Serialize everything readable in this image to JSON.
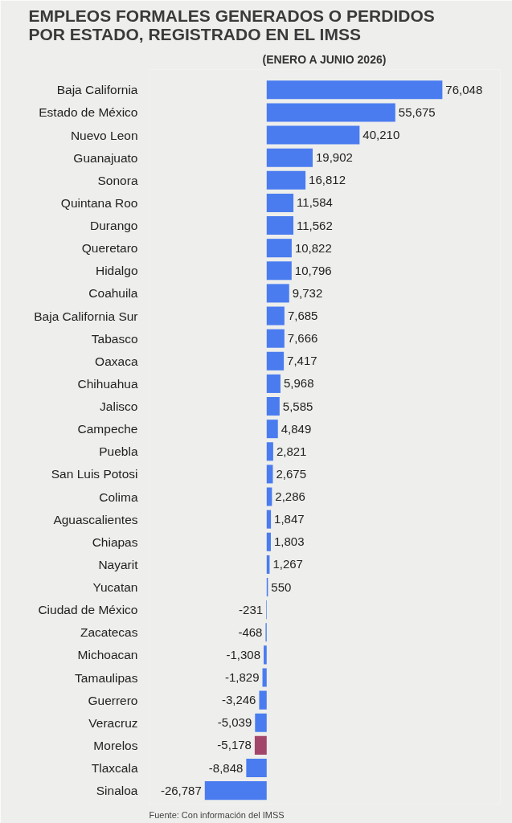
{
  "chart_data": {
    "type": "bar",
    "orientation": "horizontal",
    "title": "EMPLEOS FORMALES GENERADOS O PERDIDOS\nPOR ESTADO,  REGISTRADO EN EL IMSS",
    "subtitle": "(ENERO A JUNIO 2026)",
    "categories": [
      "Baja California",
      "Estado de México",
      "Nuevo Leon",
      "Guanajuato",
      "Sonora",
      "Quintana Roo",
      "Durango",
      "Queretaro",
      "Hidalgo",
      "Coahuila",
      "Baja California Sur",
      "Tabasco",
      "Oaxaca",
      "Chihuahua",
      "Jalisco",
      "Campeche",
      "Puebla",
      "San Luis Potosi",
      "Colima",
      "Aguascalientes",
      "Chiapas",
      "Nayarit",
      "Yucatan",
      "Ciudad de México",
      "Zacatecas",
      "Michoacan",
      "Tamaulipas",
      "Guerrero",
      "Veracruz",
      "Morelos",
      "Tlaxcala",
      "Sinaloa"
    ],
    "values": [
      76048,
      55675,
      40210,
      19902,
      16812,
      11584,
      11562,
      10822,
      10796,
      9732,
      7685,
      7666,
      7417,
      5968,
      5585,
      4849,
      2821,
      2675,
      2286,
      1847,
      1803,
      1267,
      550,
      -231,
      -468,
      -1308,
      -1829,
      -3246,
      -5039,
      -5178,
      -8848,
      -26787
    ],
    "colors": [
      "#4a7cf0",
      "#4a7cf0",
      "#4a7cf0",
      "#4a7cf0",
      "#4a7cf0",
      "#4a7cf0",
      "#4a7cf0",
      "#4a7cf0",
      "#4a7cf0",
      "#4a7cf0",
      "#4a7cf0",
      "#4a7cf0",
      "#4a7cf0",
      "#4a7cf0",
      "#4a7cf0",
      "#4a7cf0",
      "#4a7cf0",
      "#4a7cf0",
      "#4a7cf0",
      "#4a7cf0",
      "#4a7cf0",
      "#4a7cf0",
      "#4a7cf0",
      "#4a7cf0",
      "#4a7cf0",
      "#4a7cf0",
      "#4a7cf0",
      "#4a7cf0",
      "#4a7cf0",
      "#a3446a",
      "#4a7cf0",
      "#4a7cf0"
    ],
    "value_labels": [
      "76,048",
      "55,675",
      "40,210",
      "19,902",
      "16,812",
      "11,584",
      "11,562",
      "10,822",
      "10,796",
      "9,732",
      "7,685",
      "7,666",
      "7,417",
      "5,968",
      "5,585",
      "4,849",
      "2,821",
      "2,675",
      "2,286",
      "1,847",
      "1,803",
      "1,267",
      "550",
      "-231",
      "-468",
      "-1,308",
      "-1,829",
      "-3,246",
      "-5,039",
      "-5,178",
      "-8,848",
      "-26,787"
    ],
    "annotations": [
      "Fuente: Con información del IMSS"
    ]
  }
}
